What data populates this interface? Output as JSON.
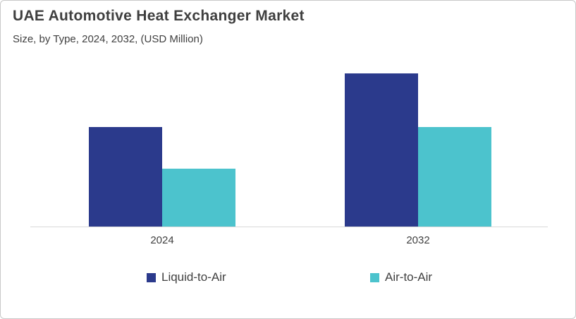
{
  "frame": {
    "background": "#FFFFFF",
    "border_color": "#C8C8C8"
  },
  "header": {
    "title": "UAE Automotive Heat Exchanger Market",
    "subtitle": "Size, by Type, 2024, 2032, (USD Million)",
    "text_color": "#3F3F3F"
  },
  "chart_data": {
    "type": "bar",
    "title": "UAE Automotive Heat Exchanger Market",
    "subtitle": "Size, by Type, 2024, 2032, (USD Million)",
    "categories": [
      "2024",
      "2032"
    ],
    "series": [
      {
        "name": "Liquid-to-Air",
        "color": "#2B3A8C",
        "values": [
          65,
          100
        ]
      },
      {
        "name": "Air-to-Air",
        "color": "#4CC3CD",
        "values": [
          38,
          65
        ]
      }
    ],
    "ylabel": "",
    "xlabel": "",
    "value_axis_visible": false,
    "ylim_relative": [
      0,
      100
    ],
    "gridlines": false,
    "legend_position": "bottom",
    "axis_line_color": "#D9D9D9",
    "note": "No numeric axis or data labels are shown in the chart; values are relative estimates from bar heights, normalized so the tallest bar (2032 Liquid-to-Air) = 100."
  },
  "legend": {
    "items": [
      {
        "label": "Liquid-to-Air",
        "color": "#2B3A8C"
      },
      {
        "label": "Air-to-Air",
        "color": "#4CC3CD"
      }
    ]
  }
}
